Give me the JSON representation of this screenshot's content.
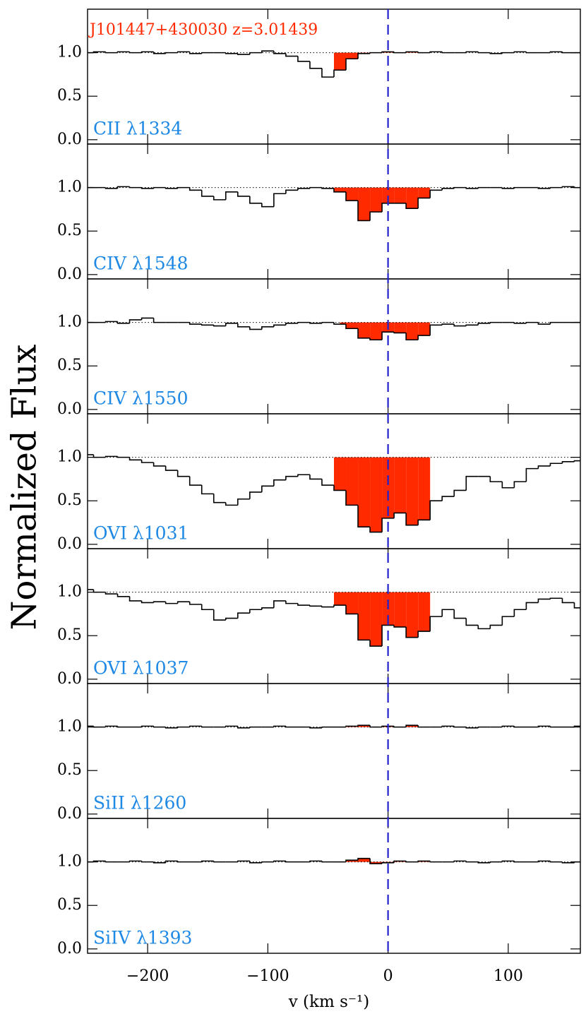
{
  "chart_data": {
    "type": "step",
    "title": "J101447+430030 z=3.01439",
    "title_color": "#ff2a00",
    "xlabel": "v (km s⁻¹)",
    "ylabel": "Normalized Flux",
    "xlim": [
      -250,
      160
    ],
    "xticks": [
      {
        "value": -200,
        "label": "−200"
      },
      {
        "value": -100,
        "label": "−100"
      },
      0,
      100
    ],
    "ylim": [
      -0.05,
      1.5
    ],
    "yticks": [
      {
        "value": 0,
        "label": "0.0"
      },
      0.5,
      {
        "value": 1,
        "label": "1.0"
      }
    ],
    "vline": 0,
    "continuum": 1,
    "line_color": "#000000",
    "fill_color": "#ff2a00",
    "label_color": "#1e88e5",
    "vline_color": "#2222cc",
    "x": [
      -250,
      -240,
      -230,
      -220,
      -210,
      -200,
      -190,
      -180,
      -170,
      -160,
      -150,
      -140,
      -130,
      -120,
      -110,
      -100,
      -90,
      -80,
      -70,
      -60,
      -50,
      -40,
      -30,
      -20,
      -10,
      0,
      10,
      20,
      30,
      40,
      50,
      60,
      70,
      80,
      90,
      100,
      110,
      120,
      130,
      140,
      150,
      160
    ],
    "series": [
      {
        "name": "CII  λ1334",
        "shade": [
          -45,
          30
        ],
        "values": [
          1.0,
          1.01,
          1.0,
          1.01,
          1.0,
          1.01,
          0.99,
          1.0,
          1.01,
          0.99,
          1.0,
          1.0,
          0.99,
          0.98,
          1.0,
          1.02,
          0.99,
          0.96,
          0.9,
          0.82,
          0.72,
          0.8,
          0.93,
          0.99,
          1.0,
          1.01,
          1.0,
          1.01,
          1.0,
          1.01,
          1.0,
          1.0,
          1.01,
          1.0,
          0.99,
          1.0,
          1.01,
          1.0,
          1.0,
          1.01,
          1.0,
          1.0
        ]
      },
      {
        "name": "CIV  λ1548",
        "shade": [
          -45,
          35
        ],
        "values": [
          1.0,
          1.0,
          0.99,
          1.01,
          1.0,
          0.99,
          1.0,
          0.99,
          1.0,
          0.97,
          0.9,
          0.86,
          0.95,
          0.9,
          0.82,
          0.78,
          0.93,
          0.97,
          0.99,
          1.0,
          0.99,
          0.95,
          0.85,
          0.62,
          0.72,
          0.82,
          0.82,
          0.76,
          0.88,
          0.97,
          0.99,
          1.0,
          0.99,
          1.0,
          1.0,
          0.99,
          1.0,
          1.0,
          0.99,
          1.0,
          1.01,
          1.0
        ]
      },
      {
        "name": "CIV  λ1550",
        "shade": [
          -40,
          35
        ],
        "values": [
          1.0,
          1.0,
          1.01,
          0.99,
          1.03,
          1.05,
          1.0,
          1.0,
          1.0,
          0.98,
          0.97,
          0.96,
          0.99,
          0.95,
          0.92,
          0.95,
          0.97,
          0.99,
          1.0,
          0.99,
          1.0,
          0.98,
          0.93,
          0.82,
          0.8,
          0.89,
          0.88,
          0.8,
          0.85,
          0.97,
          0.98,
          0.96,
          0.97,
          0.99,
          1.0,
          1.0,
          0.99,
          1.0,
          0.98,
          1.0,
          1.0,
          1.0
        ]
      },
      {
        "name": "OVI  λ1031",
        "shade": [
          -45,
          35
        ],
        "values": [
          1.03,
          1.0,
          1.01,
          1.0,
          0.97,
          0.94,
          0.9,
          0.85,
          0.78,
          0.68,
          0.58,
          0.48,
          0.45,
          0.52,
          0.6,
          0.67,
          0.74,
          0.78,
          0.8,
          0.75,
          0.68,
          0.62,
          0.45,
          0.2,
          0.14,
          0.3,
          0.36,
          0.22,
          0.28,
          0.5,
          0.55,
          0.62,
          0.78,
          0.78,
          0.72,
          0.65,
          0.72,
          0.87,
          0.9,
          0.93,
          0.95,
          0.96
        ]
      },
      {
        "name": "OVI  λ1037",
        "shade": [
          -45,
          35
        ],
        "values": [
          1.03,
          1.0,
          0.98,
          0.95,
          0.9,
          0.88,
          0.89,
          0.87,
          0.89,
          0.86,
          0.8,
          0.68,
          0.7,
          0.76,
          0.8,
          0.82,
          0.9,
          0.87,
          0.85,
          0.84,
          0.83,
          0.85,
          0.75,
          0.45,
          0.38,
          0.62,
          0.6,
          0.48,
          0.55,
          0.72,
          0.8,
          0.7,
          0.62,
          0.58,
          0.62,
          0.72,
          0.8,
          0.88,
          0.92,
          0.93,
          0.88,
          0.82
        ]
      },
      {
        "name": "SiII  λ1260",
        "shade": [
          -45,
          35
        ],
        "values": [
          1.01,
          1.0,
          1.01,
          1.0,
          1.0,
          1.01,
          1.0,
          0.99,
          1.0,
          1.01,
          1.0,
          1.0,
          1.01,
          0.99,
          1.0,
          1.0,
          1.01,
          1.0,
          1.0,
          0.99,
          1.0,
          1.0,
          1.01,
          1.02,
          1.0,
          1.01,
          1.0,
          1.02,
          1.0,
          1.0,
          1.01,
          1.0,
          0.99,
          1.0,
          1.0,
          1.01,
          1.0,
          1.0,
          1.01,
          1.0,
          1.0,
          1.01
        ]
      },
      {
        "name": "SiIV  λ1393",
        "shade": [
          -45,
          35
        ],
        "values": [
          1.0,
          1.01,
          1.0,
          1.0,
          1.01,
          1.0,
          0.99,
          1.01,
          1.0,
          1.0,
          1.01,
          1.0,
          1.0,
          1.01,
          0.99,
          1.0,
          1.01,
          1.0,
          1.0,
          1.01,
          1.0,
          1.0,
          1.02,
          1.04,
          0.98,
          0.99,
          1.01,
          1.0,
          1.01,
          1.0,
          1.0,
          1.01,
          1.0,
          0.99,
          1.0,
          1.01,
          1.0,
          1.0,
          1.01,
          1.0,
          0.99,
          1.0
        ]
      }
    ]
  }
}
